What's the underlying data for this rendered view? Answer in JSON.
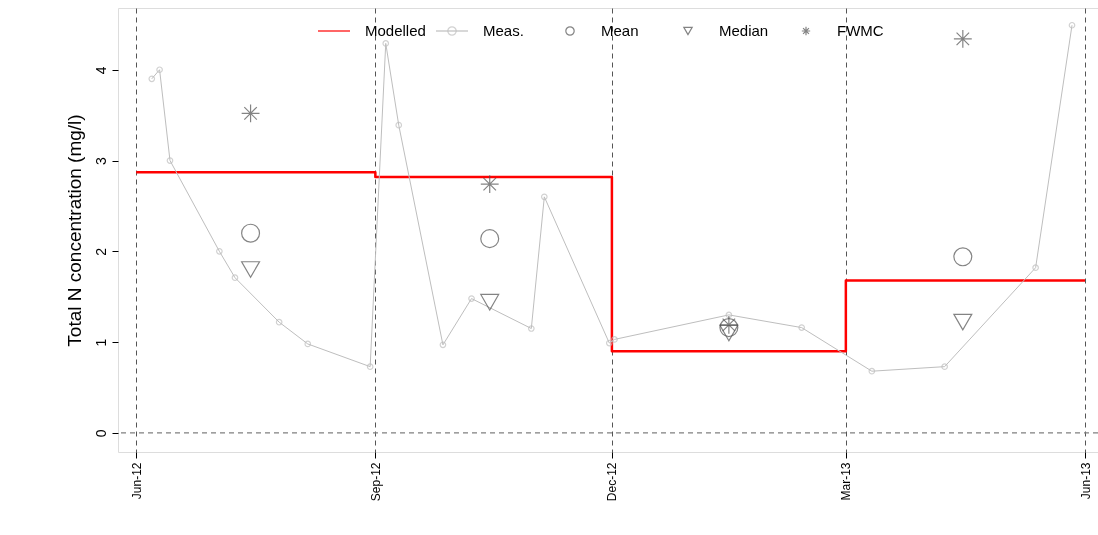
{
  "chart_data": {
    "type": "line",
    "ylabel": "Total N concentration (mg/l)",
    "xlim": [
      "2012-05-25",
      "2013-06-06"
    ],
    "ylim": [
      -0.21,
      4.68
    ],
    "xticks": [
      {
        "value": "2012-06-01",
        "label": "Jun-12"
      },
      {
        "value": "2012-09-01",
        "label": "Sep-12"
      },
      {
        "value": "2012-12-01",
        "label": "Dec-12"
      },
      {
        "value": "2013-03-01",
        "label": "Mar-13"
      },
      {
        "value": "2013-06-01",
        "label": "Jun-13"
      }
    ],
    "yticks": [
      0,
      1,
      2,
      3,
      4
    ],
    "grid": "x",
    "legend": "top",
    "ref_lines": [
      {
        "axis": "y",
        "value": 0,
        "color": "#808080",
        "line_style": "dashed"
      }
    ],
    "series": [
      {
        "name": "Modelled",
        "type": "step",
        "color": "#ff0000",
        "marker": "none",
        "x": [
          "2012-06-01",
          "2012-09-01",
          "2012-12-01",
          "2013-03-01",
          "2013-06-01"
        ],
        "values": [
          2.87,
          2.82,
          0.9,
          1.68,
          1.68
        ]
      },
      {
        "name": "Meas.",
        "color": "#bebebe",
        "marker": "circle",
        "x": [
          "2012-06-07",
          "2012-06-10",
          "2012-06-14",
          "2012-07-03",
          "2012-07-09",
          "2012-07-26",
          "2012-08-06",
          "2012-08-30",
          "2012-09-05",
          "2012-09-10",
          "2012-09-27",
          "2012-10-08",
          "2012-10-31",
          "2012-11-05",
          "2012-11-30",
          "2012-12-02",
          "2013-01-15",
          "2013-02-12",
          "2013-03-11",
          "2013-04-08",
          "2013-05-13",
          "2013-05-27"
        ],
        "values": [
          3.9,
          4.0,
          3.0,
          2.0,
          1.71,
          1.22,
          0.98,
          0.73,
          4.29,
          3.39,
          0.97,
          1.48,
          1.15,
          2.6,
          0.99,
          1.03,
          1.3,
          1.16,
          0.68,
          0.73,
          1.82,
          4.49
        ]
      },
      {
        "name": "Mean",
        "type": "scatter",
        "color": "#505050",
        "marker": "circle",
        "x": [
          "2012-07-15",
          "2012-10-15",
          "2013-01-15",
          "2013-04-15"
        ],
        "values": [
          2.2,
          2.14,
          1.16,
          1.94
        ]
      },
      {
        "name": "Median",
        "type": "scatter",
        "color": "#505050",
        "marker": "triangle",
        "x": [
          "2012-07-15",
          "2012-10-15",
          "2013-01-15",
          "2013-04-15"
        ],
        "values": [
          1.8,
          1.44,
          1.1,
          1.22
        ]
      },
      {
        "name": "FWMC",
        "type": "scatter",
        "color": "#505050",
        "marker": "cross",
        "x": [
          "2012-07-15",
          "2012-10-15",
          "2013-01-15",
          "2013-04-15"
        ],
        "values": [
          3.52,
          2.74,
          1.19,
          4.34
        ]
      }
    ]
  }
}
